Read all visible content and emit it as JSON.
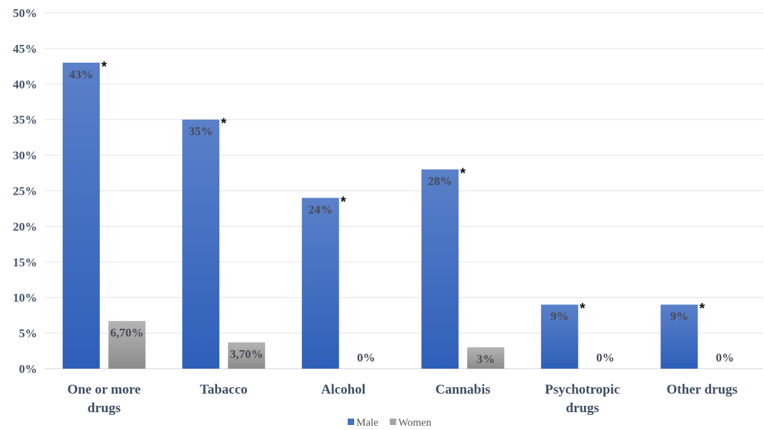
{
  "chart_data": {
    "type": "bar",
    "title": "",
    "xlabel": "",
    "ylabel": "",
    "ylim": [
      0,
      50
    ],
    "yticks": [
      "0%",
      "5%",
      "10%",
      "15%",
      "20%",
      "25%",
      "30%",
      "35%",
      "40%",
      "45%",
      "50%"
    ],
    "grid": true,
    "legend_position": "bottom",
    "categories": [
      [
        "One or more",
        "drugs"
      ],
      [
        "Tabacco"
      ],
      [
        "Alcohol"
      ],
      [
        "Cannabis"
      ],
      [
        "Psychotropic",
        "drugs"
      ],
      [
        "Other drugs"
      ]
    ],
    "series": [
      {
        "name": "Male",
        "color": "#4472c4",
        "values": [
          43,
          35,
          24,
          28,
          9,
          9
        ],
        "labels": [
          "43%",
          "35%",
          "24%",
          "28%",
          "9%",
          "9%"
        ],
        "marker": [
          "*",
          "*",
          "*",
          "*",
          "*",
          "*"
        ]
      },
      {
        "name": "Women",
        "color": "#a5a5a5",
        "values": [
          6.7,
          3.7,
          0,
          3,
          0,
          0
        ],
        "labels": [
          "6,70%",
          "3,70%",
          "0%",
          "3%",
          "0%",
          "0%"
        ]
      }
    ]
  }
}
